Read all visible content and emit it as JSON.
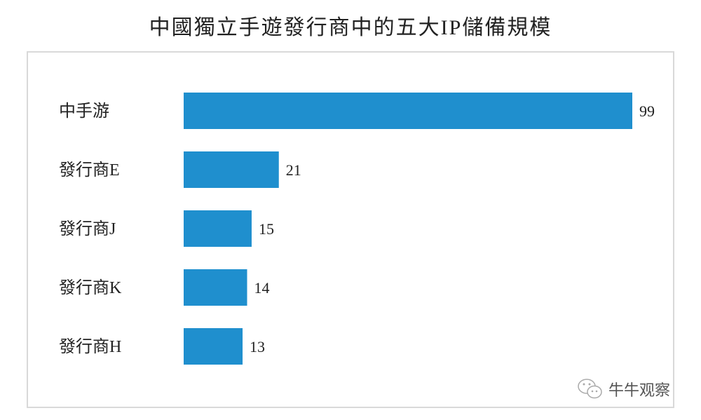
{
  "chart_data": {
    "type": "bar",
    "orientation": "horizontal",
    "title": "中國獨立手遊發行商中的五大IP儲備規模",
    "categories": [
      "中手游",
      "發行商E",
      "發行商J",
      "發行商K",
      "發行商H"
    ],
    "values": [
      99,
      21,
      15,
      14,
      13
    ],
    "bar_color": "#1f8fce",
    "grid": false,
    "xlim": [
      0,
      99
    ]
  },
  "watermark": {
    "icon": "wechat-icon",
    "text": "牛牛观察"
  }
}
